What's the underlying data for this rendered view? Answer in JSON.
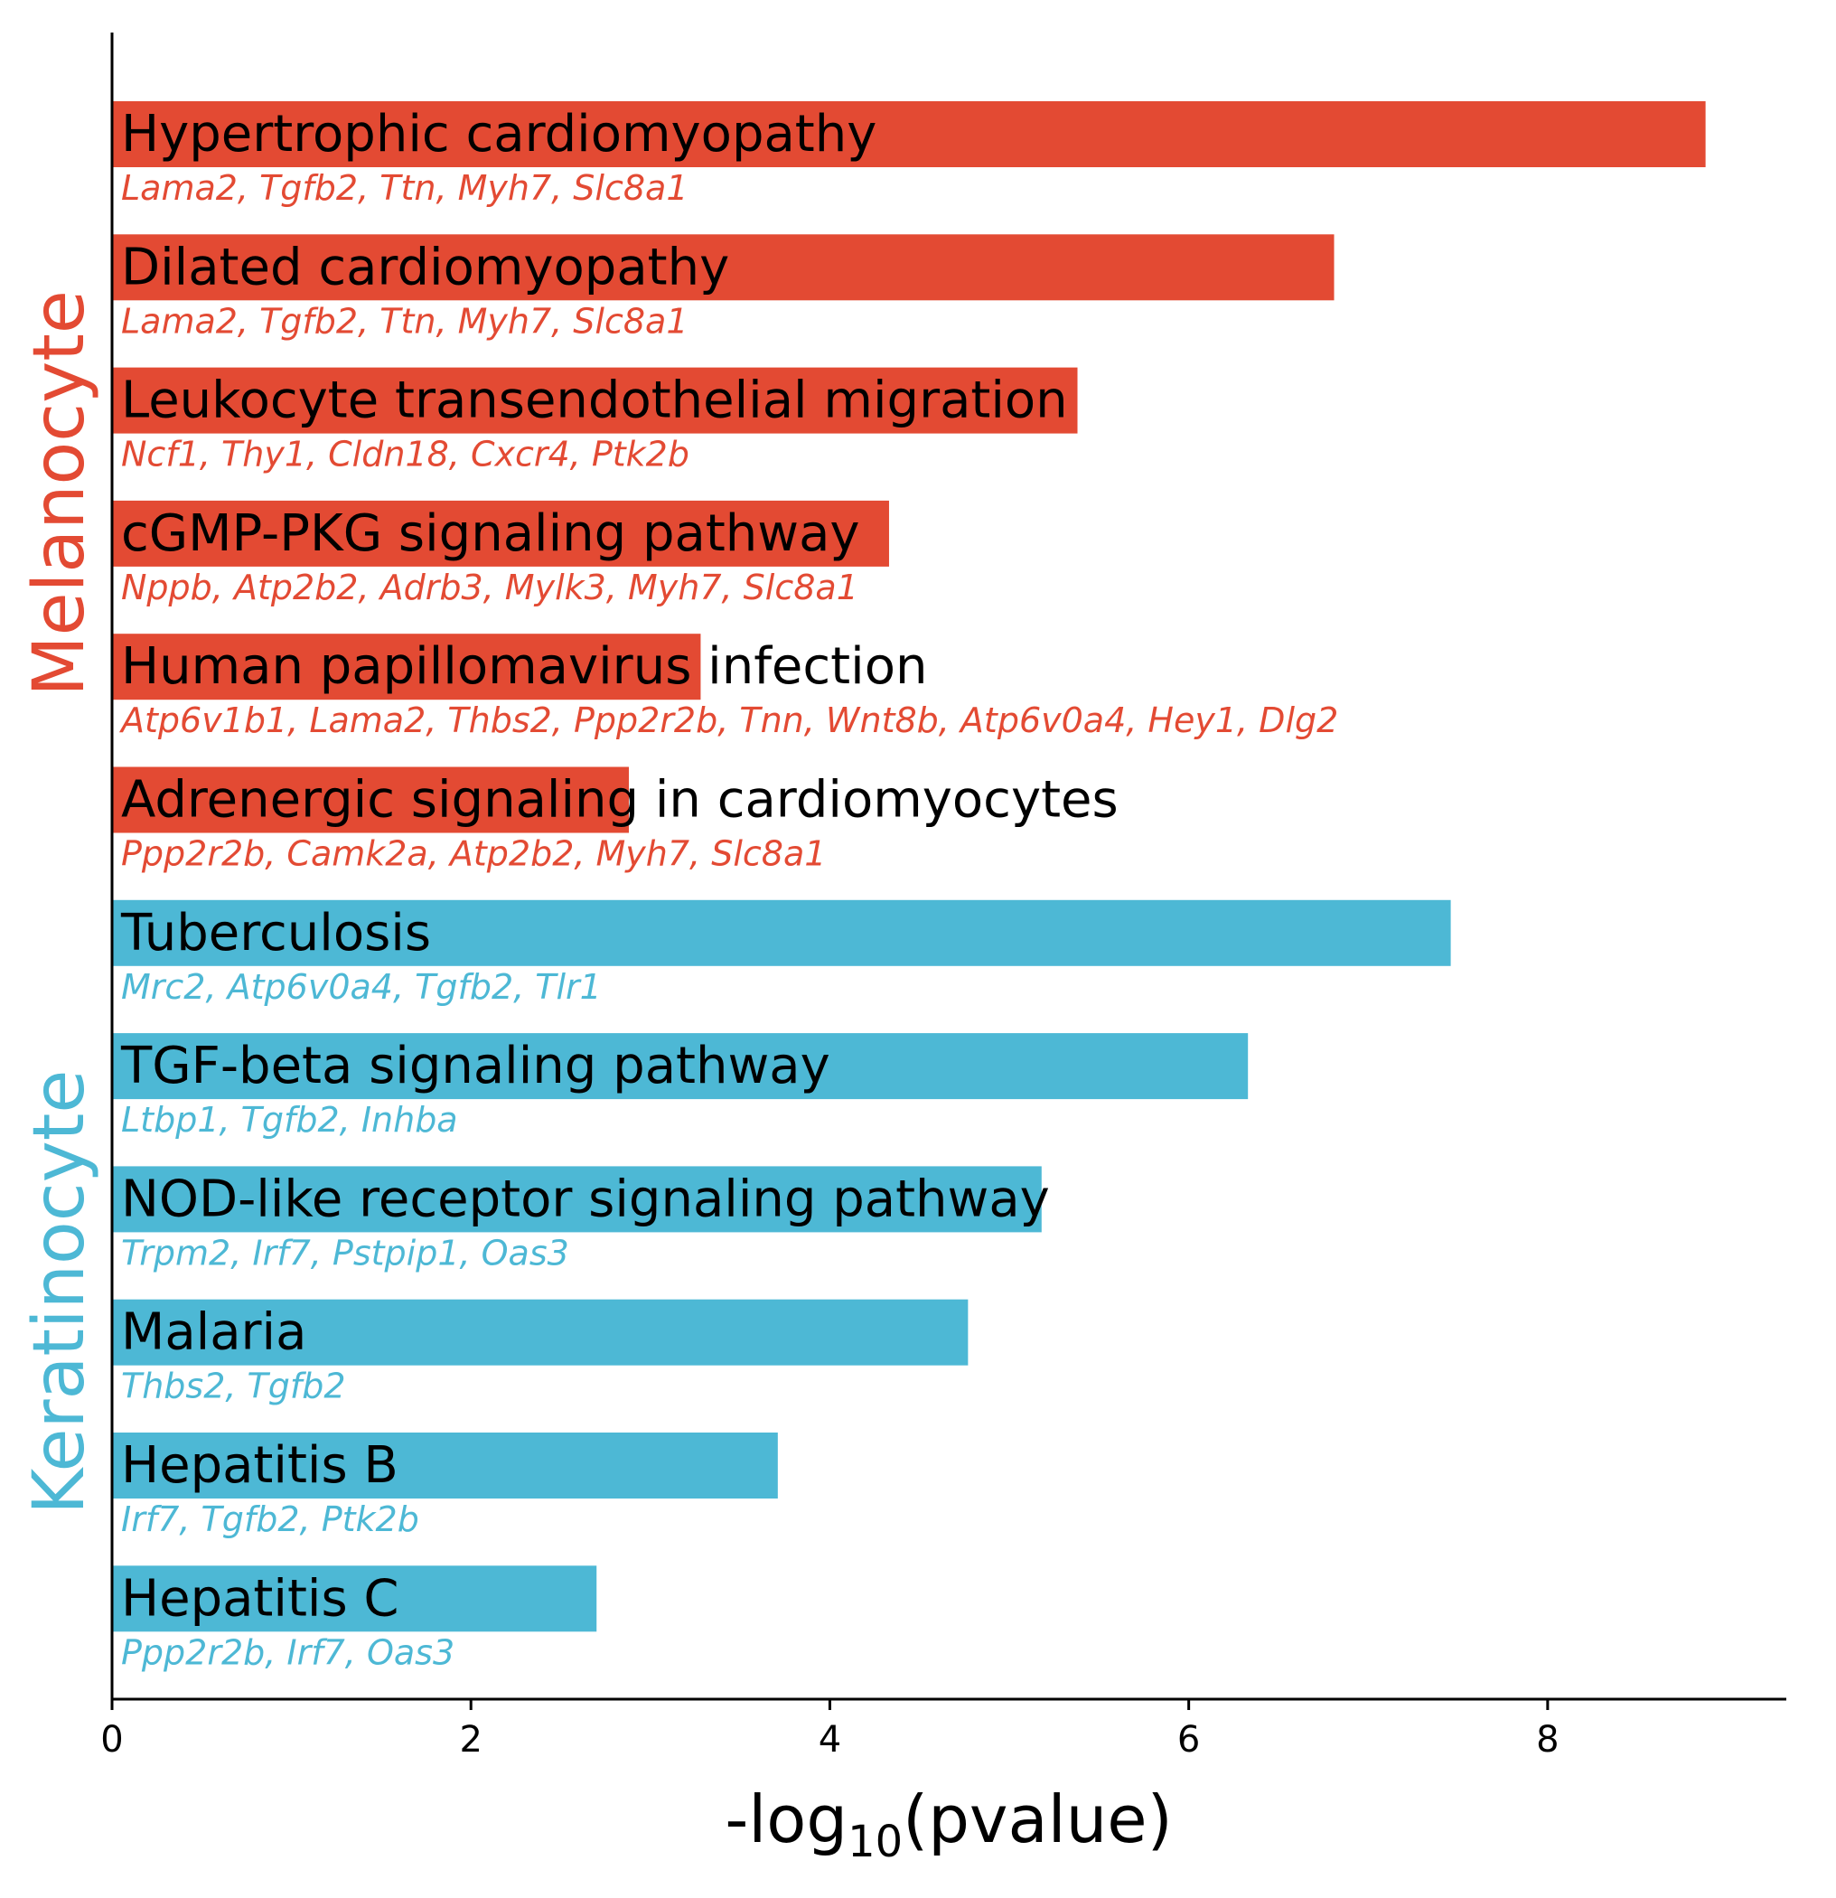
{
  "chart_data": {
    "type": "bar",
    "orientation": "horizontal",
    "xlabel": {
      "prefix": "-log",
      "subscript": "10",
      "suffix": "(pvalue)"
    },
    "xlim": [
      0,
      9.33
    ],
    "xticks": [
      "0",
      "2",
      "4",
      "6",
      "8"
    ],
    "xtick_values": [
      0,
      2,
      4,
      6,
      8
    ],
    "grid": false,
    "colors": {
      "Melanocyte": "#E34A33",
      "Keratinocyte": "#4DB8D5"
    },
    "groups": [
      {
        "name": "Melanocyte",
        "terms": [
          {
            "term": "Hypertrophic cardiomyopathy",
            "value": 8.88,
            "genes": "Lama2, Tgfb2, Ttn, Myh7, Slc8a1"
          },
          {
            "term": "Dilated cardiomyopathy",
            "value": 6.81,
            "genes": "Lama2, Tgfb2, Ttn, Myh7, Slc8a1"
          },
          {
            "term": "Leukocyte transendothelial migration",
            "value": 5.38,
            "genes": "Ncf1, Thy1, Cldn18, Cxcr4, Ptk2b"
          },
          {
            "term": "cGMP-PKG signaling pathway",
            "value": 4.33,
            "genes": "Nppb, Atp2b2, Adrb3, Mylk3, Myh7, Slc8a1"
          },
          {
            "term": "Human papillomavirus infection",
            "value": 3.28,
            "genes": "Atp6v1b1, Lama2, Thbs2, Ppp2r2b, Tnn, Wnt8b, Atp6v0a4, Hey1, Dlg2"
          },
          {
            "term": "Adrenergic signaling in cardiomyocytes",
            "value": 2.88,
            "genes": "Ppp2r2b, Camk2a, Atp2b2, Myh7, Slc8a1"
          }
        ]
      },
      {
        "name": "Keratinocyte",
        "terms": [
          {
            "term": "Tuberculosis",
            "value": 7.46,
            "genes": "Mrc2, Atp6v0a4, Tgfb2, Tlr1"
          },
          {
            "term": "TGF-beta signaling pathway",
            "value": 6.33,
            "genes": "Ltbp1, Tgfb2, Inhba"
          },
          {
            "term": "NOD-like receptor signaling pathway",
            "value": 5.18,
            "genes": "Trpm2, Irf7, Pstpip1, Oas3"
          },
          {
            "term": "Malaria",
            "value": 4.77,
            "genes": "Thbs2, Tgfb2"
          },
          {
            "term": "Hepatitis B",
            "value": 3.71,
            "genes": "Irf7, Tgfb2, Ptk2b"
          },
          {
            "term": "Hepatitis C",
            "value": 2.7,
            "genes": "Ppp2r2b, Irf7, Oas3"
          }
        ]
      }
    ]
  }
}
